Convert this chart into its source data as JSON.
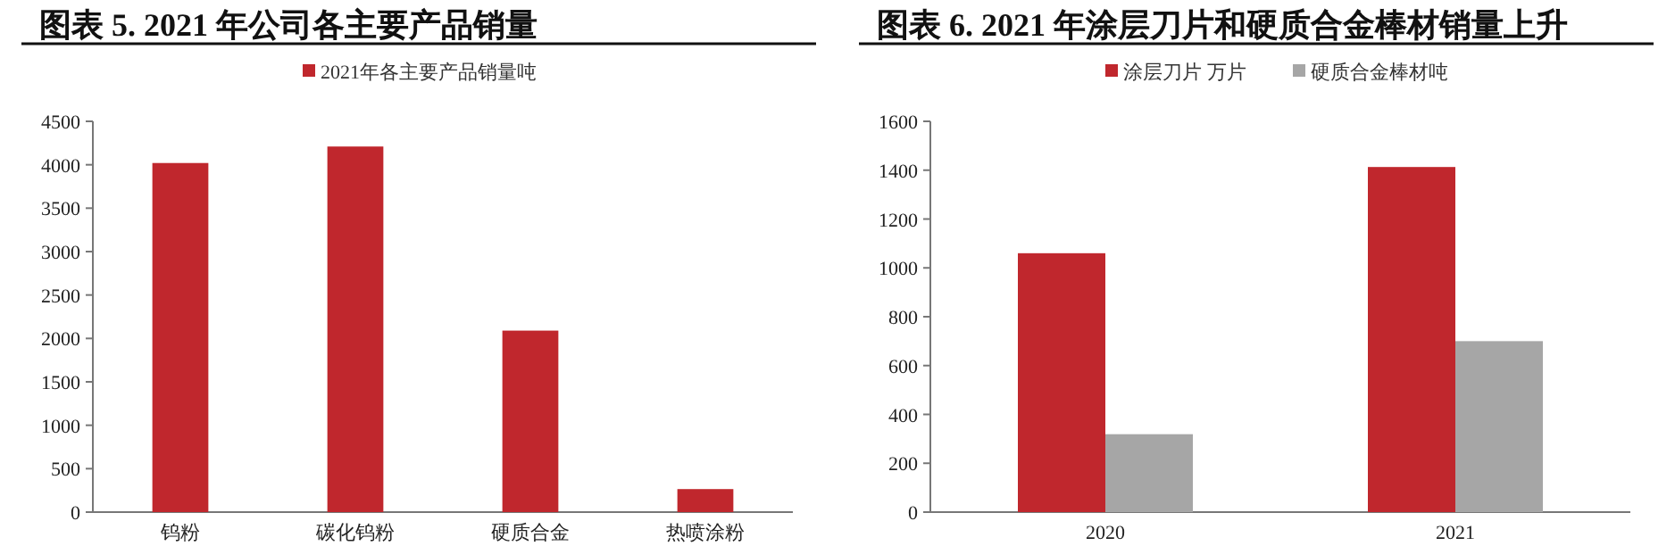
{
  "chart_data": [
    {
      "type": "bar",
      "title": "图表 5.  2021 年公司各主要产品销量",
      "categories": [
        "钨粉",
        "碳化钨粉",
        "硬质合金",
        "热喷涂粉"
      ],
      "series": [
        {
          "name": "2021年各主要产品销量吨",
          "color": "#c0272d",
          "values": [
            4020,
            4210,
            2090,
            265
          ]
        }
      ],
      "ylim": [
        0,
        4500
      ],
      "yticks": [
        0,
        500,
        1000,
        1500,
        2000,
        2500,
        3000,
        3500,
        4000,
        4500
      ],
      "grid": false,
      "legend": "top"
    },
    {
      "type": "bar",
      "title": "图表 6.  2021 年涂层刀片和硬质合金棒材销量上升",
      "categories": [
        "2020",
        "2021"
      ],
      "series": [
        {
          "name": "涂层刀片 万片",
          "color": "#c0272d",
          "values": [
            1060,
            1413
          ]
        },
        {
          "name": "硬质合金棒材吨",
          "color": "#a6a6a6",
          "values": [
            319,
            700
          ]
        }
      ],
      "ylim": [
        0,
        1600
      ],
      "yticks": [
        0,
        200,
        400,
        600,
        800,
        1000,
        1200,
        1400,
        1600
      ],
      "grid": false,
      "legend": "top"
    }
  ]
}
